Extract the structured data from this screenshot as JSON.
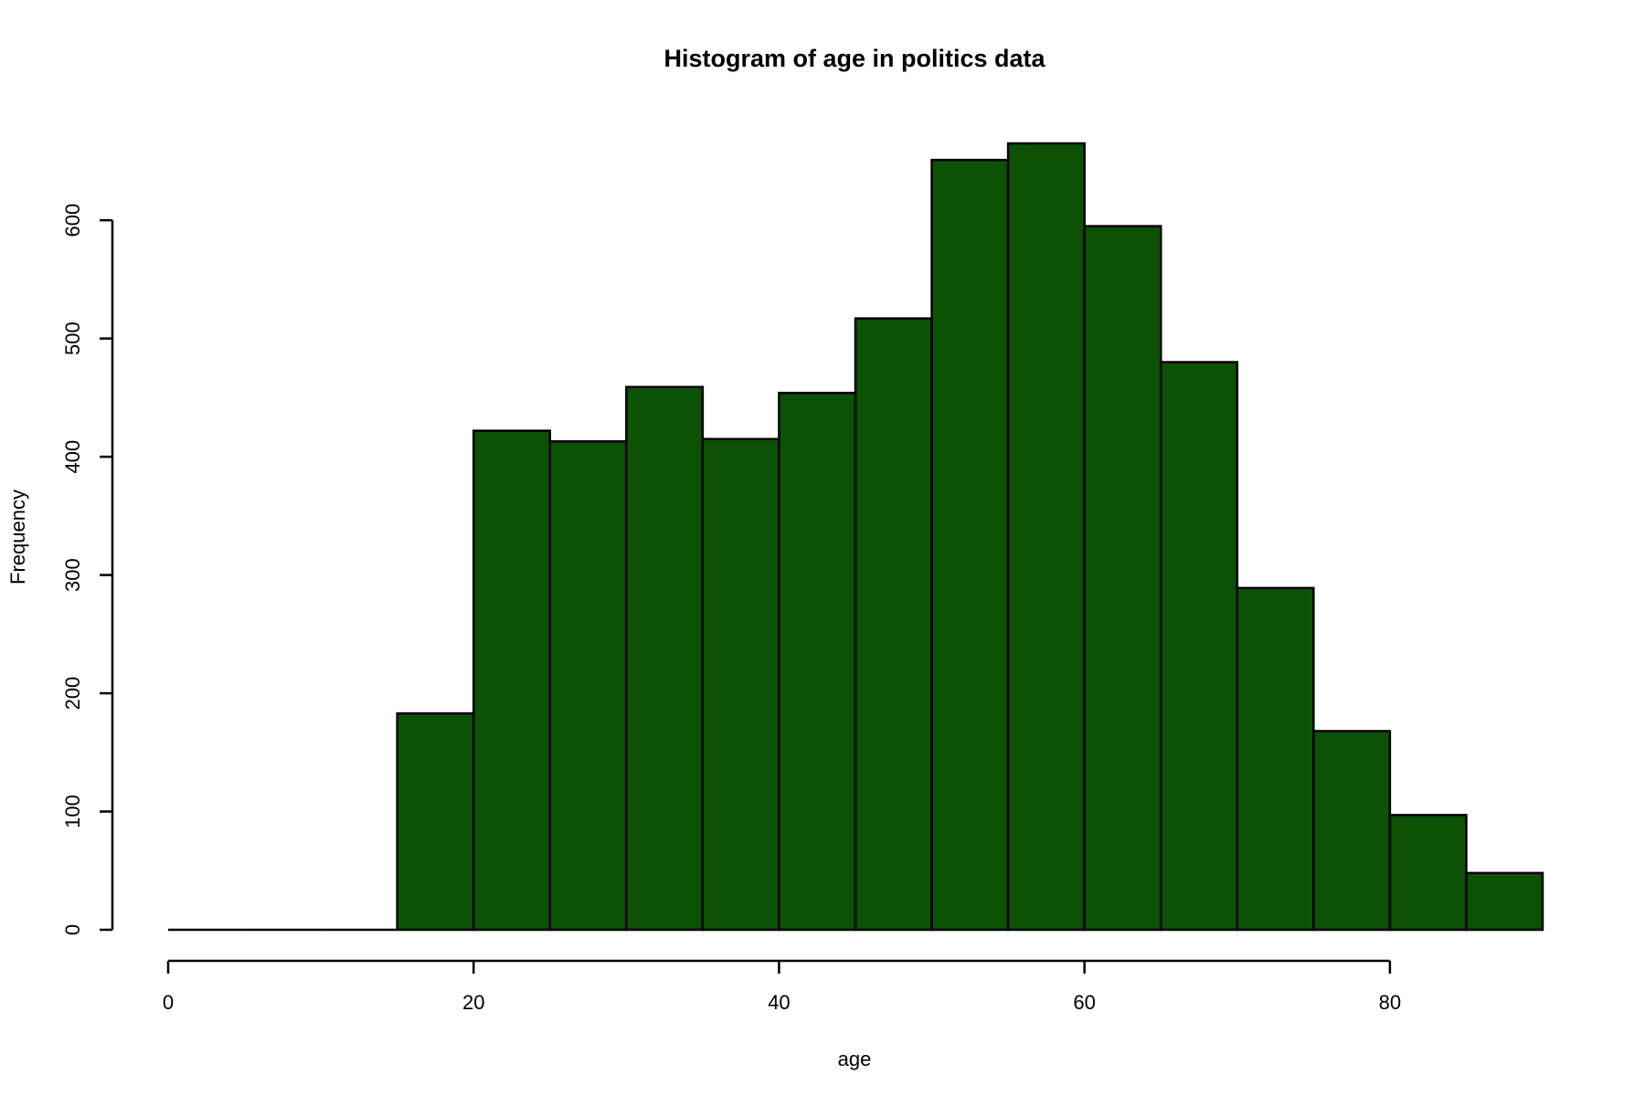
{
  "chart_data": {
    "type": "bar",
    "title": "Histogram of age in politics data",
    "xlabel": "age",
    "ylabel": "Frequency",
    "bin_width": 5,
    "bins": [
      {
        "start": 0,
        "end": 5,
        "count": 0
      },
      {
        "start": 5,
        "end": 10,
        "count": 0
      },
      {
        "start": 10,
        "end": 15,
        "count": 0
      },
      {
        "start": 15,
        "end": 20,
        "count": 183
      },
      {
        "start": 20,
        "end": 25,
        "count": 422
      },
      {
        "start": 25,
        "end": 30,
        "count": 413
      },
      {
        "start": 30,
        "end": 35,
        "count": 459
      },
      {
        "start": 35,
        "end": 40,
        "count": 415
      },
      {
        "start": 40,
        "end": 45,
        "count": 454
      },
      {
        "start": 45,
        "end": 50,
        "count": 517
      },
      {
        "start": 50,
        "end": 55,
        "count": 651
      },
      {
        "start": 55,
        "end": 60,
        "count": 665
      },
      {
        "start": 60,
        "end": 65,
        "count": 595
      },
      {
        "start": 65,
        "end": 70,
        "count": 480
      },
      {
        "start": 70,
        "end": 75,
        "count": 289
      },
      {
        "start": 75,
        "end": 80,
        "count": 168
      },
      {
        "start": 80,
        "end": 85,
        "count": 97
      },
      {
        "start": 85,
        "end": 90,
        "count": 48
      }
    ],
    "x_ticks": [
      0,
      20,
      40,
      60,
      80
    ],
    "y_ticks": [
      0,
      100,
      200,
      300,
      400,
      500,
      600
    ],
    "xlim": [
      0,
      90
    ],
    "ylim": [
      0,
      665
    ],
    "grid": false,
    "legend": "none",
    "bar_color": "#0b5204",
    "outline_color": "#000000"
  }
}
